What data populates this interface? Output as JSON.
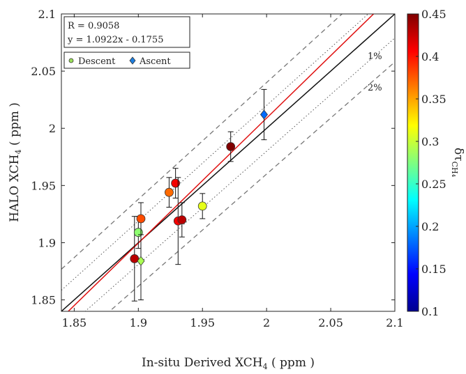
{
  "chart_data": {
    "type": "scatter",
    "title": "",
    "xlabel": "In-situ Derived XCH",
    "xlabel_sub": "4",
    "xlabel_unit": "( ppm )",
    "ylabel": "HALO XCH",
    "ylabel_sub": "4",
    "ylabel_unit": "( ppm )",
    "xlim": [
      1.84,
      2.1
    ],
    "ylim": [
      1.84,
      2.1
    ],
    "xticks": [
      "1.85",
      "1.9",
      "1.95",
      "2",
      "2.05",
      "2.1"
    ],
    "yticks": [
      "1.85",
      "1.9",
      "1.95",
      "2",
      "2.05",
      "2.1"
    ],
    "grid": false,
    "stats": {
      "r_text": "R = 0.9058",
      "fit_text": "y = 1.0922x - 0.1755",
      "slope": 1.0922,
      "intercept": -0.1755
    },
    "legend": {
      "position": "top-left",
      "entries": [
        {
          "label": "Descent",
          "marker": "circle"
        },
        {
          "label": "Ascent",
          "marker": "diamond"
        }
      ]
    },
    "reference_lines": [
      {
        "label": "",
        "style": "solid-black",
        "percent": 0
      },
      {
        "label": "1%",
        "style": "dotted-gray",
        "percent": 1
      },
      {
        "label": "2%",
        "style": "dashed-gray",
        "percent": 2
      }
    ],
    "fit_line_color": "#e01010",
    "colorbar": {
      "label": "δτ",
      "label_sub": "CH₄",
      "range": [
        0.1,
        0.45
      ],
      "ticks": [
        "0.1",
        "0.15",
        "0.2",
        "0.25",
        "0.3",
        "0.35",
        "0.4",
        "0.45"
      ],
      "colormap": "jet"
    },
    "points": [
      {
        "x": 1.897,
        "y": 1.886,
        "err": 0.037,
        "c": 0.43,
        "type": "descent"
      },
      {
        "x": 1.9,
        "y": 1.909,
        "err": 0.014,
        "c": 0.28,
        "type": "descent"
      },
      {
        "x": 1.902,
        "y": 1.884,
        "err": 0.034,
        "c": 0.29,
        "type": "ascent"
      },
      {
        "x": 1.902,
        "y": 1.921,
        "err": 0.014,
        "c": 0.38,
        "type": "descent"
      },
      {
        "x": 1.924,
        "y": 1.944,
        "err": 0.013,
        "c": 0.37,
        "type": "descent"
      },
      {
        "x": 1.929,
        "y": 1.952,
        "err": 0.013,
        "c": 0.41,
        "type": "descent"
      },
      {
        "x": 1.931,
        "y": 1.919,
        "err": 0.038,
        "c": 0.41,
        "type": "descent"
      },
      {
        "x": 1.934,
        "y": 1.92,
        "err": 0.015,
        "c": 0.43,
        "type": "descent"
      },
      {
        "x": 1.95,
        "y": 1.932,
        "err": 0.011,
        "c": 0.31,
        "type": "descent"
      },
      {
        "x": 1.972,
        "y": 1.984,
        "err": 0.013,
        "c": 0.45,
        "type": "descent"
      },
      {
        "x": 1.998,
        "y": 2.012,
        "err": 0.022,
        "c": 0.18,
        "type": "ascent"
      }
    ]
  }
}
